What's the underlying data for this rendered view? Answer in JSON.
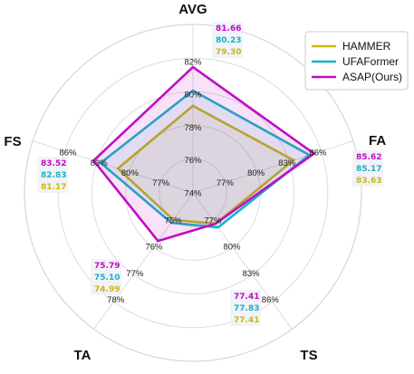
{
  "chart_data": {
    "type": "radar",
    "axes": [
      {
        "name": "AVG",
        "tick_labels": [
          "74%",
          "76%",
          "78%",
          "80%",
          "82%"
        ]
      },
      {
        "name": "FA",
        "tick_labels": [
          "77%",
          "80%",
          "83%",
          "86%"
        ]
      },
      {
        "name": "TS",
        "tick_labels": [
          "77%",
          "80%",
          "83%",
          "86%"
        ]
      },
      {
        "name": "TA",
        "tick_labels": [
          "75%",
          "76%",
          "77%",
          "78%"
        ]
      },
      {
        "name": "FS",
        "tick_labels": [
          "77%",
          "80%",
          "83%",
          "86%"
        ]
      }
    ],
    "series": [
      {
        "name": "HAMMER",
        "color": "#c8b90a",
        "values": [
          79.3,
          83.63,
          77.41,
          74.99,
          81.17
        ]
      },
      {
        "name": "UFAFormer",
        "color": "#17b3c4",
        "values": [
          80.23,
          85.17,
          77.83,
          75.1,
          82.83
        ]
      },
      {
        "name": "ASAP(Ours)",
        "color": "#c00ec4",
        "values": [
          81.66,
          85.62,
          77.41,
          75.79,
          83.52
        ]
      }
    ],
    "legend": "top-right",
    "grid": true
  }
}
